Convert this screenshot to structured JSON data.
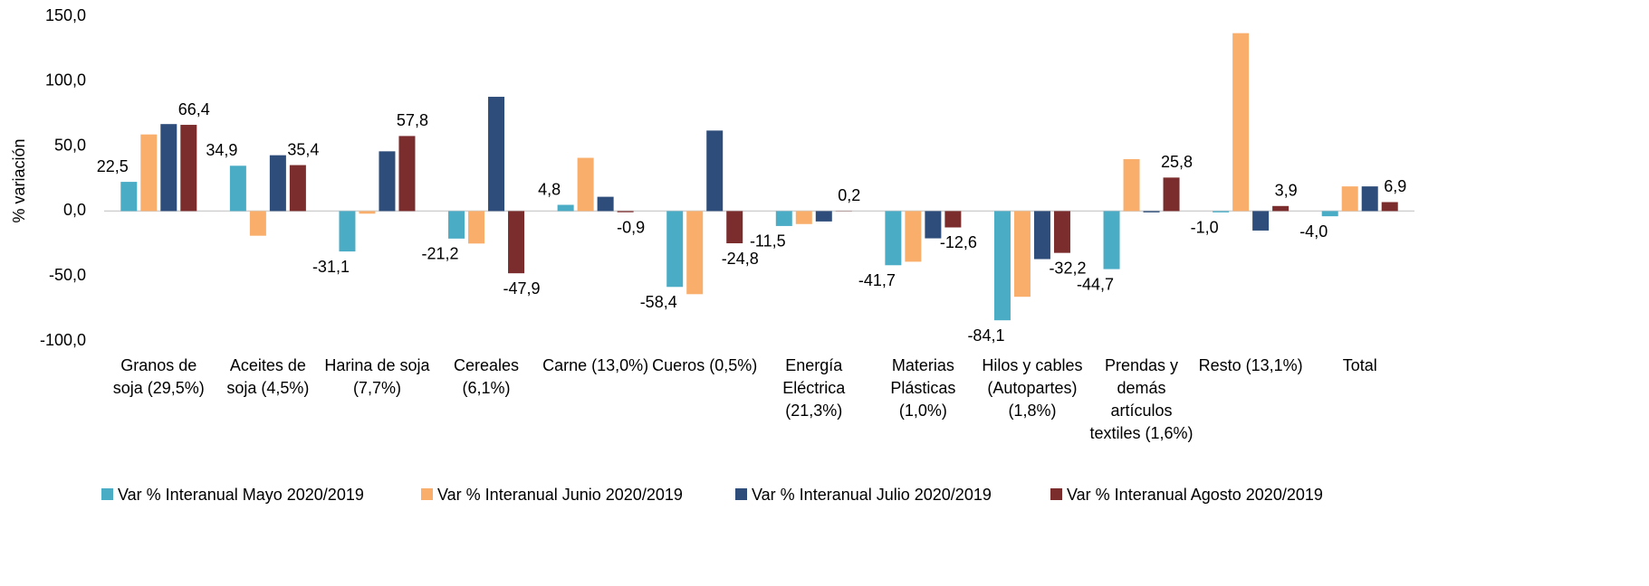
{
  "chart_data": {
    "type": "bar",
    "y_label": "% variación",
    "categories": [
      "Granos de soja (29,5%)",
      "Aceites de soja (4,5%)",
      "Harina de soja (7,7%)",
      "Cereales (6,1%)",
      "Carne (13,0%)",
      "Cueros (0,5%)",
      "Energía Eléctrica (21,3%)",
      "Materias Plásticas (1,0%)",
      "Hilos y cables (Autopartes) (1,8%)",
      "Prendas y demás artículos textiles (1,6%)",
      "Resto (13,1%)",
      "Total"
    ],
    "series": [
      {
        "name": "Var % Interanual Mayo 2020/2019",
        "color": "#4bacc6",
        "values": [
          22.5,
          34.9,
          -31.1,
          -21.2,
          4.8,
          -58.4,
          -11.5,
          -41.7,
          -84.1,
          -44.7,
          -1.0,
          -4.0
        ],
        "value_labels": [
          "22,5",
          "34,9",
          "-31,1",
          "-21,2",
          "4,8",
          "-58,4",
          "-11,5",
          "-41,7",
          "-84,1",
          "-44,7",
          "-1,0",
          "-4,0"
        ]
      },
      {
        "name": "Var % Interanual Junio 2020/2019",
        "color": "#f9ae6b",
        "values": [
          59,
          -19,
          -2,
          -25,
          41,
          -64,
          -10,
          -39,
          -66,
          40,
          137,
          19
        ]
      },
      {
        "name": "Var % Interanual Julio 2020/2019",
        "color": "#2e4d7b",
        "values": [
          67,
          43,
          46,
          88,
          11,
          62,
          -8,
          -21,
          -37,
          -1,
          -15,
          19
        ]
      },
      {
        "name": "Var % Interanual Agosto 2020/2019",
        "color": "#7b2c2c",
        "values": [
          66.4,
          35.4,
          57.8,
          -47.9,
          -0.9,
          -24.8,
          0.2,
          -12.6,
          -32.2,
          25.8,
          3.9,
          6.9
        ],
        "value_labels": [
          "66,4",
          "35,4",
          "57,8",
          "-47,9",
          "-0,9",
          "-24,8",
          "0,2",
          "-12,6",
          "-32,2",
          "25,8",
          "3,9",
          "6,9"
        ]
      }
    ],
    "ylim": [
      -100,
      150
    ],
    "yticks": [
      {
        "value": -100,
        "label": "-100,0"
      },
      {
        "value": -50,
        "label": "-50,0"
      },
      {
        "value": 0,
        "label": "0,0"
      },
      {
        "value": 50,
        "label": "50,0"
      },
      {
        "value": 100,
        "label": "100,0"
      },
      {
        "value": 150,
        "label": "150,0"
      }
    ],
    "legend": "bottom"
  }
}
